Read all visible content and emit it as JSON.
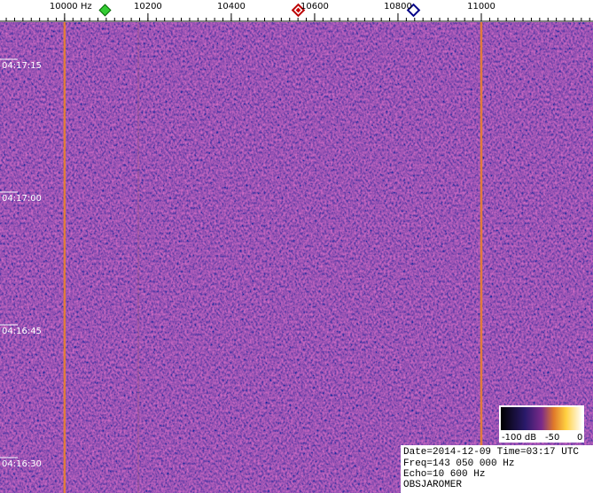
{
  "chart_data": {
    "type": "spectrogram",
    "xlim": [
      9845,
      11268
    ],
    "xticks": [
      {
        "value": 10000,
        "label": "10000  Hz"
      },
      10200,
      10400,
      10600,
      10800,
      11000
    ],
    "ylim": [
      15386.7,
      15439.9
    ],
    "yticks": [
      {
        "value": 15435,
        "label": "04:17:15"
      },
      {
        "value": 15420,
        "label": "04:17:00"
      },
      {
        "value": 15405,
        "label": "04:16:45"
      },
      {
        "value": 15390,
        "label": "04:16:30"
      }
    ],
    "carriers": [
      10000,
      11000
    ],
    "carrier_color": "#e07a3c",
    "colorbar": {
      "labels": [
        "-100 dB",
        "-50",
        "0"
      ]
    },
    "info": [
      "Date=2014-12-09 Time=03:17 UTC",
      "Freq=143 050 000 Hz",
      "Echo=10 600 Hz",
      "OBSJAROMER"
    ]
  }
}
